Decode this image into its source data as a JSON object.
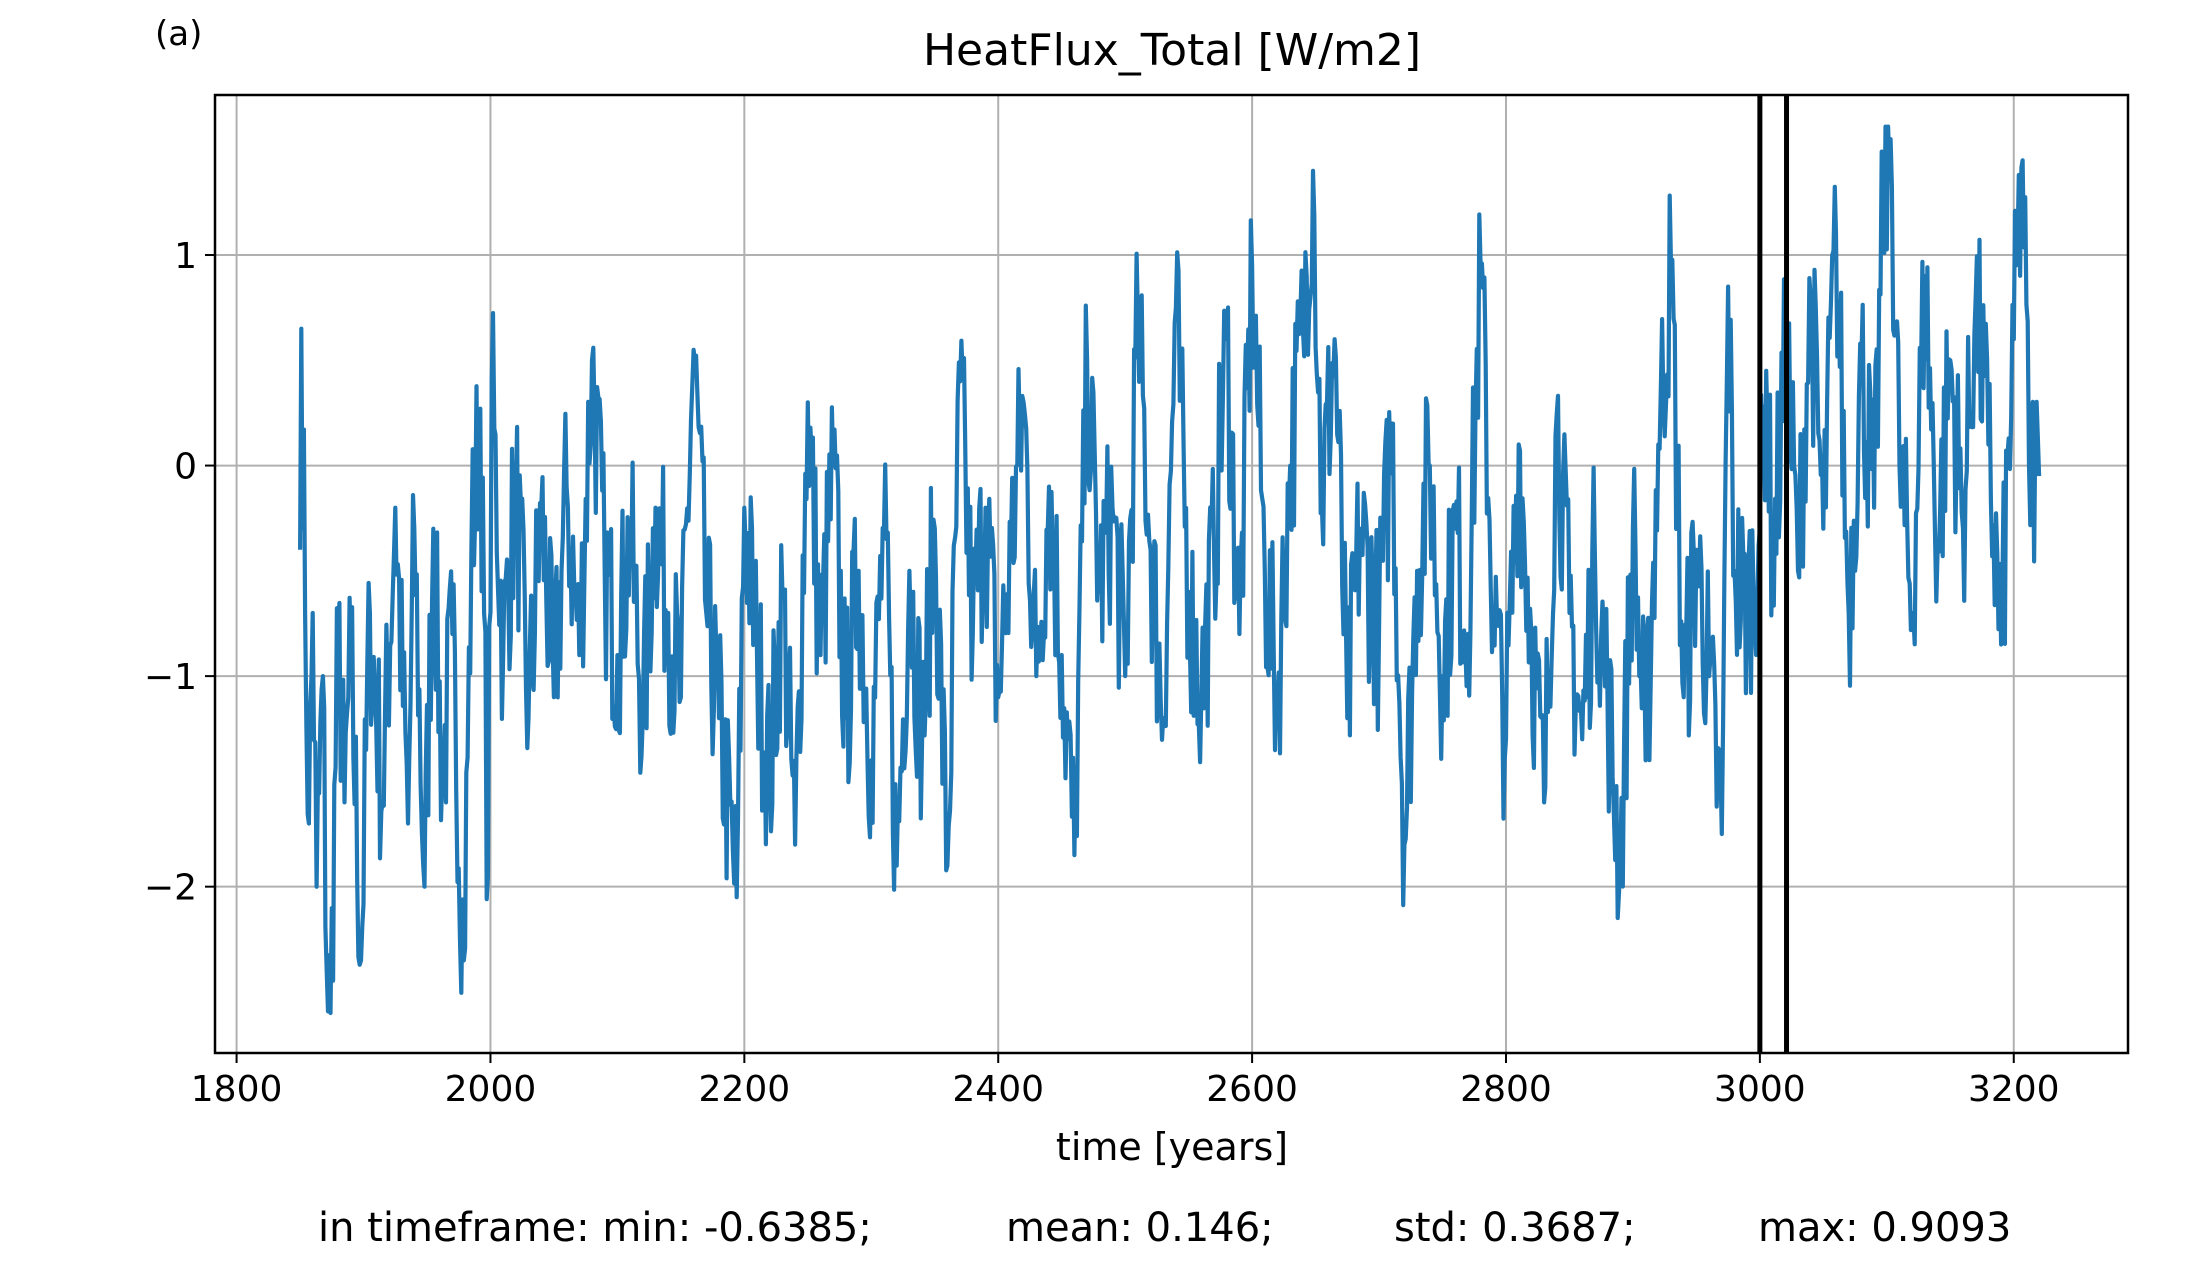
{
  "panel_label": "(a)",
  "chart_data": {
    "type": "line",
    "title": "HeatFlux_Total [W/m2]",
    "xlabel": "time [years]",
    "ylabel": "",
    "xlim": [
      1783,
      3290
    ],
    "ylim": [
      -2.79,
      1.76
    ],
    "xticks": [
      1800,
      2000,
      2200,
      2400,
      2600,
      2800,
      3000,
      3200
    ],
    "yticks": [
      -2,
      -1,
      0,
      1
    ],
    "ytick_labels": [
      "−2",
      "−1",
      "0",
      "1"
    ],
    "grid": true,
    "line_color": "#1f77b4",
    "vlines": [
      3000,
      3021
    ],
    "vline_color": "#000000",
    "series": [
      {
        "x_start": 1850,
        "x_step": 1,
        "anchors": [
          [
            1850,
            -0.4
          ],
          [
            1851,
            0.65
          ],
          [
            1854,
            -0.7
          ],
          [
            1857,
            -1.7
          ],
          [
            1860,
            -0.7
          ],
          [
            1863,
            -2.0
          ],
          [
            1868,
            -1.0
          ],
          [
            1871,
            -2.4
          ],
          [
            1874,
            -2.6
          ],
          [
            1880,
            -0.8
          ],
          [
            1885,
            -1.6
          ],
          [
            1890,
            -0.9
          ],
          [
            1898,
            -2.35
          ],
          [
            1905,
            -0.7
          ],
          [
            1915,
            -1.6
          ],
          [
            1925,
            -0.2
          ],
          [
            1935,
            -1.7
          ],
          [
            1940,
            -0.3
          ],
          [
            1948,
            -2.0
          ],
          [
            1955,
            -0.3
          ],
          [
            1962,
            -1.5
          ],
          [
            1970,
            -0.8
          ],
          [
            1979,
            -2.35
          ],
          [
            1985,
            -0.4
          ],
          [
            1992,
            0.27
          ],
          [
            1998,
            -1.95
          ],
          [
            2001,
            0.4
          ],
          [
            2010,
            -0.9
          ],
          [
            2020,
            -0.1
          ],
          [
            2030,
            -1.2
          ],
          [
            2040,
            -0.2
          ],
          [
            2050,
            -1.1
          ],
          [
            2060,
            -0.1
          ],
          [
            2070,
            -0.9
          ],
          [
            2080,
            0.5
          ],
          [
            2090,
            -0.5
          ],
          [
            2100,
            -0.9
          ],
          [
            2110,
            -0.3
          ],
          [
            2120,
            -1.2
          ],
          [
            2130,
            -0.2
          ],
          [
            2140,
            -0.7
          ],
          [
            2150,
            -1.1
          ],
          [
            2160,
            0.55
          ],
          [
            2170,
            -0.7
          ],
          [
            2180,
            -1.2
          ],
          [
            2194,
            -2.05
          ],
          [
            2200,
            -0.2
          ],
          [
            2210,
            -0.9
          ],
          [
            2220,
            -1.5
          ],
          [
            2230,
            -0.6
          ],
          [
            2240,
            -1.8
          ],
          [
            2250,
            0.3
          ],
          [
            2260,
            -0.9
          ],
          [
            2270,
            0.0
          ],
          [
            2280,
            -1.2
          ],
          [
            2290,
            -0.5
          ],
          [
            2300,
            -1.4
          ],
          [
            2310,
            -0.3
          ],
          [
            2320,
            -1.9
          ],
          [
            2330,
            -0.5
          ],
          [
            2340,
            -1.3
          ],
          [
            2350,
            -0.3
          ],
          [
            2360,
            -1.9
          ],
          [
            2370,
            0.4
          ],
          [
            2380,
            -0.8
          ],
          [
            2390,
            -0.2
          ],
          [
            2400,
            -1.1
          ],
          [
            2410,
            -0.4
          ],
          [
            2420,
            0.3
          ],
          [
            2430,
            -1.0
          ],
          [
            2440,
            -0.1
          ],
          [
            2450,
            -0.9
          ],
          [
            2460,
            -1.85
          ],
          [
            2470,
            0.5
          ],
          [
            2480,
            -0.6
          ],
          [
            2490,
            -0.2
          ],
          [
            2500,
            -1.0
          ],
          [
            2510,
            0.7
          ],
          [
            2520,
            -0.4
          ],
          [
            2530,
            -1.2
          ],
          [
            2540,
            0.75
          ],
          [
            2550,
            -0.6
          ],
          [
            2560,
            -1.1
          ],
          [
            2570,
            -0.4
          ],
          [
            2580,
            0.6
          ],
          [
            2590,
            -0.8
          ],
          [
            2600,
            0.95
          ],
          [
            2610,
            -0.5
          ],
          [
            2620,
            -1.1
          ],
          [
            2630,
            0.0
          ],
          [
            2640,
            0.65
          ],
          [
            2648,
            1.4
          ],
          [
            2655,
            -0.2
          ],
          [
            2665,
            0.6
          ],
          [
            2675,
            -1.2
          ],
          [
            2685,
            -0.3
          ],
          [
            2700,
            -0.8
          ],
          [
            2710,
            0.2
          ],
          [
            2720,
            -1.8
          ],
          [
            2730,
            -0.5
          ],
          [
            2740,
            0.0
          ],
          [
            2750,
            -1.0
          ],
          [
            2760,
            -0.3
          ],
          [
            2770,
            -0.8
          ],
          [
            2780,
            0.95
          ],
          [
            2790,
            -0.7
          ],
          [
            2800,
            -1.3
          ],
          [
            2810,
            0.1
          ],
          [
            2820,
            -0.8
          ],
          [
            2830,
            -1.6
          ],
          [
            2840,
            0.25
          ],
          [
            2850,
            -0.7
          ],
          [
            2860,
            -1.3
          ],
          [
            2870,
            -0.4
          ],
          [
            2880,
            -1.1
          ],
          [
            2890,
            -1.9
          ],
          [
            2900,
            -0.3
          ],
          [
            2910,
            -1.4
          ],
          [
            2920,
            0.1
          ],
          [
            2930,
            0.95
          ],
          [
            2940,
            -1.1
          ],
          [
            2950,
            -0.4
          ],
          [
            2960,
            -1.0
          ],
          [
            2970,
            -1.75
          ],
          [
            2975,
            0.85
          ],
          [
            2980,
            -0.5
          ],
          [
            2990,
            -0.7
          ],
          [
            3000,
            -0.3
          ],
          [
            3005,
            0.45
          ],
          [
            3010,
            -0.5
          ],
          [
            3021,
            0.6
          ],
          [
            3030,
            -0.5
          ],
          [
            3040,
            0.8
          ],
          [
            3050,
            -0.3
          ],
          [
            3060,
            1.1
          ],
          [
            3070,
            -0.7
          ],
          [
            3080,
            0.5
          ],
          [
            3090,
            -0.2
          ],
          [
            3097,
            1.2
          ],
          [
            3103,
            1.55
          ],
          [
            3110,
            0.0
          ],
          [
            3120,
            -0.7
          ],
          [
            3130,
            0.9
          ],
          [
            3140,
            -0.4
          ],
          [
            3150,
            0.5
          ],
          [
            3160,
            -0.3
          ],
          [
            3170,
            0.8
          ],
          [
            3180,
            0.1
          ],
          [
            3190,
            -0.85
          ],
          [
            3200,
            0.6
          ],
          [
            3207,
            1.45
          ],
          [
            3212,
            0.0
          ],
          [
            3220,
            -0.05
          ]
        ],
        "noise": 0.5,
        "seed": 7
      }
    ],
    "stats": [
      {
        "label": "in timeframe: min: -0.6385;"
      },
      {
        "label": "mean: 0.146;"
      },
      {
        "label": "std: 0.3687;"
      },
      {
        "label": "max: 0.9093"
      }
    ]
  }
}
